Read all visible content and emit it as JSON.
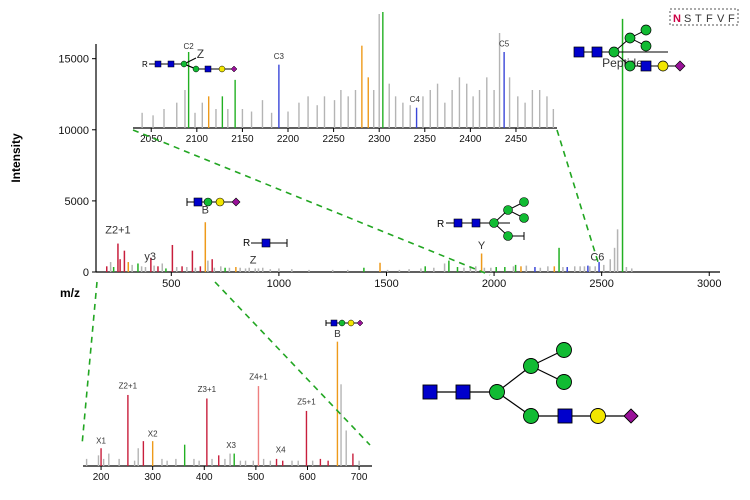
{
  "colors": {
    "axis": "#000000",
    "gray": "#b4b4b4",
    "red": "#c81e3c",
    "orange": "#ee9a1a",
    "green": "#22b022",
    "blue": "#3a46d8",
    "pink": "#ee8080",
    "dashed_guide": "#22a622",
    "glycan_blue": "#0000cc",
    "glycan_green": "#11bb33",
    "glycan_yellow": "#f2e600",
    "glycan_purple": "#991199",
    "sequon_highlight": "#cc0044"
  },
  "sequon": {
    "letters": [
      "N",
      "S",
      "T",
      "F",
      "V",
      "F"
    ]
  },
  "chart_data": [
    {
      "id": "main",
      "type": "bar",
      "title": "",
      "xlabel": "m/z",
      "ylabel": "Intensity",
      "xlim": [
        150,
        3050
      ],
      "ylim": [
        0,
        18000
      ],
      "xticks": [
        500,
        1000,
        1500,
        2000,
        2500,
        3000
      ],
      "yticks": [
        0,
        5000,
        10000,
        15000
      ],
      "peaks": [
        {
          "x": 200,
          "y": 400,
          "color": "red"
        },
        {
          "x": 218,
          "y": 700,
          "color": "gray"
        },
        {
          "x": 232,
          "y": 350,
          "color": "green"
        },
        {
          "x": 252,
          "y": 2000,
          "color": "red"
        },
        {
          "x": 262,
          "y": 900,
          "color": "red"
        },
        {
          "x": 282,
          "y": 1500,
          "color": "red"
        },
        {
          "x": 300,
          "y": 700,
          "color": "orange"
        },
        {
          "x": 318,
          "y": 500,
          "color": "gray"
        },
        {
          "x": 345,
          "y": 600,
          "color": "green"
        },
        {
          "x": 362,
          "y": 400,
          "color": "gray"
        },
        {
          "x": 380,
          "y": 350,
          "color": "gray"
        },
        {
          "x": 405,
          "y": 1000,
          "color": "red"
        },
        {
          "x": 420,
          "y": 450,
          "color": "gray"
        },
        {
          "x": 438,
          "y": 400,
          "color": "red"
        },
        {
          "x": 458,
          "y": 600,
          "color": "gray"
        },
        {
          "x": 475,
          "y": 250,
          "color": "green"
        },
        {
          "x": 505,
          "y": 1900,
          "color": "red"
        },
        {
          "x": 525,
          "y": 350,
          "color": "gray"
        },
        {
          "x": 550,
          "y": 400,
          "color": "red"
        },
        {
          "x": 572,
          "y": 350,
          "color": "gray"
        },
        {
          "x": 598,
          "y": 1500,
          "color": "red"
        },
        {
          "x": 612,
          "y": 300,
          "color": "gray"
        },
        {
          "x": 635,
          "y": 400,
          "color": "red"
        },
        {
          "x": 658,
          "y": 3500,
          "color": "orange"
        },
        {
          "x": 670,
          "y": 800,
          "color": "gray"
        },
        {
          "x": 690,
          "y": 900,
          "color": "red"
        },
        {
          "x": 700,
          "y": 300,
          "color": "gray"
        },
        {
          "x": 730,
          "y": 400,
          "color": "gray"
        },
        {
          "x": 750,
          "y": 300,
          "color": "green"
        },
        {
          "x": 770,
          "y": 300,
          "color": "gray"
        },
        {
          "x": 800,
          "y": 350,
          "color": "orange"
        },
        {
          "x": 820,
          "y": 300,
          "color": "gray"
        },
        {
          "x": 845,
          "y": 250,
          "color": "gray"
        },
        {
          "x": 862,
          "y": 300,
          "color": "gray"
        },
        {
          "x": 890,
          "y": 250,
          "color": "gray"
        },
        {
          "x": 905,
          "y": 250,
          "color": "gray"
        },
        {
          "x": 925,
          "y": 300,
          "color": "gray"
        },
        {
          "x": 960,
          "y": 200,
          "color": "gray"
        },
        {
          "x": 1000,
          "y": 250,
          "color": "gray"
        },
        {
          "x": 1060,
          "y": 200,
          "color": "gray"
        },
        {
          "x": 1140,
          "y": 150,
          "color": "gray"
        },
        {
          "x": 1250,
          "y": 150,
          "color": "gray"
        },
        {
          "x": 1320,
          "y": 150,
          "color": "gray"
        },
        {
          "x": 1395,
          "y": 300,
          "color": "green"
        },
        {
          "x": 1470,
          "y": 650,
          "color": "orange"
        },
        {
          "x": 1505,
          "y": 150,
          "color": "gray"
        },
        {
          "x": 1560,
          "y": 150,
          "color": "gray"
        },
        {
          "x": 1605,
          "y": 200,
          "color": "gray"
        },
        {
          "x": 1660,
          "y": 250,
          "color": "gray"
        },
        {
          "x": 1680,
          "y": 400,
          "color": "green"
        },
        {
          "x": 1720,
          "y": 300,
          "color": "gray"
        },
        {
          "x": 1770,
          "y": 600,
          "color": "gray"
        },
        {
          "x": 1790,
          "y": 800,
          "color": "green"
        },
        {
          "x": 1830,
          "y": 350,
          "color": "green"
        },
        {
          "x": 1860,
          "y": 300,
          "color": "gray"
        },
        {
          "x": 1890,
          "y": 350,
          "color": "gray"
        },
        {
          "x": 1915,
          "y": 400,
          "color": "gray"
        },
        {
          "x": 1942,
          "y": 1300,
          "color": "orange"
        },
        {
          "x": 1955,
          "y": 300,
          "color": "gray"
        },
        {
          "x": 1985,
          "y": 300,
          "color": "gray"
        },
        {
          "x": 2010,
          "y": 350,
          "color": "green"
        },
        {
          "x": 2050,
          "y": 350,
          "color": "green"
        },
        {
          "x": 2090,
          "y": 400,
          "color": "gray"
        },
        {
          "x": 2100,
          "y": 500,
          "color": "green"
        },
        {
          "x": 2125,
          "y": 400,
          "color": "orange"
        },
        {
          "x": 2150,
          "y": 450,
          "color": "gray"
        },
        {
          "x": 2190,
          "y": 350,
          "color": "blue"
        },
        {
          "x": 2215,
          "y": 300,
          "color": "gray"
        },
        {
          "x": 2250,
          "y": 400,
          "color": "gray"
        },
        {
          "x": 2280,
          "y": 400,
          "color": "orange"
        },
        {
          "x": 2302,
          "y": 1700,
          "color": "green"
        },
        {
          "x": 2320,
          "y": 350,
          "color": "gray"
        },
        {
          "x": 2340,
          "y": 350,
          "color": "blue"
        },
        {
          "x": 2375,
          "y": 400,
          "color": "gray"
        },
        {
          "x": 2400,
          "y": 400,
          "color": "gray"
        },
        {
          "x": 2420,
          "y": 400,
          "color": "gray"
        },
        {
          "x": 2436,
          "y": 450,
          "color": "blue"
        },
        {
          "x": 2445,
          "y": 400,
          "color": "gray"
        },
        {
          "x": 2470,
          "y": 400,
          "color": "gray"
        },
        {
          "x": 2488,
          "y": 700,
          "color": "blue"
        },
        {
          "x": 2510,
          "y": 500,
          "color": "gray"
        },
        {
          "x": 2540,
          "y": 900,
          "color": "gray"
        },
        {
          "x": 2560,
          "y": 1700,
          "color": "gray"
        },
        {
          "x": 2574,
          "y": 3000,
          "color": "gray"
        },
        {
          "x": 2597,
          "y": 17800,
          "color": "green"
        },
        {
          "x": 2615,
          "y": 350,
          "color": "gray"
        },
        {
          "x": 2640,
          "y": 250,
          "color": "gray"
        }
      ],
      "annotations": [
        {
          "text": "Z2+1",
          "x": 252,
          "y": 2500
        },
        {
          "text": "y3",
          "x": 402,
          "y": 650
        },
        {
          "text": "B",
          "x": 658,
          "y": 3900
        },
        {
          "text": "Z",
          "x": 880,
          "y": 400
        },
        {
          "text": "Y",
          "x": 1942,
          "y": 1400
        },
        {
          "text": "C6",
          "x": 2480,
          "y": 600
        },
        {
          "text": "Peptide",
          "x": 2597,
          "y": 14200
        }
      ]
    },
    {
      "id": "zoom-high",
      "type": "bar",
      "xlim": [
        2030,
        2495
      ],
      "ylim": [
        0,
        18000
      ],
      "xticks": [
        2050,
        2100,
        2150,
        2200,
        2250,
        2300,
        2350,
        2400,
        2450
      ],
      "peaks": [
        {
          "x": 2040,
          "y": 1200,
          "color": "gray"
        },
        {
          "x": 2052,
          "y": 1000,
          "color": "gray"
        },
        {
          "x": 2064,
          "y": 1500,
          "color": "gray"
        },
        {
          "x": 2078,
          "y": 2000,
          "color": "gray"
        },
        {
          "x": 2087,
          "y": 3000,
          "color": "gray"
        },
        {
          "x": 2091,
          "y": 6000,
          "color": "green"
        },
        {
          "x": 2098,
          "y": 1200,
          "color": "gray"
        },
        {
          "x": 2106,
          "y": 2000,
          "color": "gray"
        },
        {
          "x": 2113,
          "y": 2500,
          "color": "orange"
        },
        {
          "x": 2121,
          "y": 1500,
          "color": "gray"
        },
        {
          "x": 2128,
          "y": 2500,
          "color": "green"
        },
        {
          "x": 2134,
          "y": 1500,
          "color": "gray"
        },
        {
          "x": 2142,
          "y": 3800,
          "color": "green"
        },
        {
          "x": 2150,
          "y": 1500,
          "color": "gray"
        },
        {
          "x": 2160,
          "y": 1300,
          "color": "gray"
        },
        {
          "x": 2172,
          "y": 2200,
          "color": "gray"
        },
        {
          "x": 2182,
          "y": 1200,
          "color": "gray"
        },
        {
          "x": 2190,
          "y": 5000,
          "color": "blue"
        },
        {
          "x": 2200,
          "y": 1300,
          "color": "gray"
        },
        {
          "x": 2212,
          "y": 2000,
          "color": "gray"
        },
        {
          "x": 2222,
          "y": 2500,
          "color": "gray"
        },
        {
          "x": 2232,
          "y": 1800,
          "color": "gray"
        },
        {
          "x": 2240,
          "y": 2500,
          "color": "gray"
        },
        {
          "x": 2251,
          "y": 2200,
          "color": "gray"
        },
        {
          "x": 2258,
          "y": 3000,
          "color": "gray"
        },
        {
          "x": 2266,
          "y": 2500,
          "color": "gray"
        },
        {
          "x": 2274,
          "y": 3000,
          "color": "gray"
        },
        {
          "x": 2281,
          "y": 6500,
          "color": "orange"
        },
        {
          "x": 2288,
          "y": 4000,
          "color": "orange"
        },
        {
          "x": 2294,
          "y": 3000,
          "color": "gray"
        },
        {
          "x": 2300,
          "y": 9000,
          "color": "gray"
        },
        {
          "x": 2304,
          "y": 30000,
          "color": "green"
        },
        {
          "x": 2311,
          "y": 3500,
          "color": "gray"
        },
        {
          "x": 2318,
          "y": 2500,
          "color": "gray"
        },
        {
          "x": 2326,
          "y": 2000,
          "color": "gray"
        },
        {
          "x": 2334,
          "y": 1800,
          "color": "gray"
        },
        {
          "x": 2341,
          "y": 1600,
          "color": "blue"
        },
        {
          "x": 2348,
          "y": 2500,
          "color": "gray"
        },
        {
          "x": 2356,
          "y": 3000,
          "color": "gray"
        },
        {
          "x": 2364,
          "y": 3500,
          "color": "gray"
        },
        {
          "x": 2372,
          "y": 2000,
          "color": "gray"
        },
        {
          "x": 2380,
          "y": 3000,
          "color": "gray"
        },
        {
          "x": 2388,
          "y": 4000,
          "color": "gray"
        },
        {
          "x": 2396,
          "y": 3500,
          "color": "gray"
        },
        {
          "x": 2403,
          "y": 2500,
          "color": "gray"
        },
        {
          "x": 2410,
          "y": 3000,
          "color": "gray"
        },
        {
          "x": 2418,
          "y": 4000,
          "color": "gray"
        },
        {
          "x": 2426,
          "y": 3000,
          "color": "gray"
        },
        {
          "x": 2432,
          "y": 7500,
          "color": "gray"
        },
        {
          "x": 2437,
          "y": 6000,
          "color": "blue"
        },
        {
          "x": 2443,
          "y": 4000,
          "color": "gray"
        },
        {
          "x": 2452,
          "y": 2500,
          "color": "gray"
        },
        {
          "x": 2460,
          "y": 2000,
          "color": "gray"
        },
        {
          "x": 2468,
          "y": 3000,
          "color": "gray"
        },
        {
          "x": 2476,
          "y": 3000,
          "color": "gray"
        },
        {
          "x": 2484,
          "y": 2500,
          "color": "gray"
        },
        {
          "x": 2491,
          "y": 1500,
          "color": "gray"
        }
      ],
      "annotations": [
        {
          "text": "C2",
          "x": 2091,
          "y": 6000
        },
        {
          "text": "Z",
          "x": 2104,
          "y": 5300
        },
        {
          "text": "C3",
          "x": 2190,
          "y": 5200
        },
        {
          "text": "C4",
          "x": 2339,
          "y": 1800
        },
        {
          "text": "C5",
          "x": 2437,
          "y": 6200
        }
      ]
    },
    {
      "id": "zoom-low",
      "type": "bar",
      "xlim": [
        165,
        725
      ],
      "ylim": [
        0,
        3800
      ],
      "xticks": [
        200,
        300,
        400,
        500,
        600,
        700
      ],
      "peaks": [
        {
          "x": 172,
          "y": 200,
          "color": "gray"
        },
        {
          "x": 195,
          "y": 300,
          "color": "gray"
        },
        {
          "x": 200,
          "y": 500,
          "color": "red"
        },
        {
          "x": 205,
          "y": 200,
          "color": "gray"
        },
        {
          "x": 215,
          "y": 350,
          "color": "gray"
        },
        {
          "x": 235,
          "y": 200,
          "color": "gray"
        },
        {
          "x": 252,
          "y": 2000,
          "color": "red"
        },
        {
          "x": 265,
          "y": 150,
          "color": "gray"
        },
        {
          "x": 272,
          "y": 500,
          "color": "gray"
        },
        {
          "x": 282,
          "y": 700,
          "color": "red"
        },
        {
          "x": 300,
          "y": 700,
          "color": "orange"
        },
        {
          "x": 318,
          "y": 200,
          "color": "gray"
        },
        {
          "x": 328,
          "y": 150,
          "color": "gray"
        },
        {
          "x": 345,
          "y": 200,
          "color": "gray"
        },
        {
          "x": 362,
          "y": 600,
          "color": "green"
        },
        {
          "x": 380,
          "y": 200,
          "color": "gray"
        },
        {
          "x": 390,
          "y": 150,
          "color": "gray"
        },
        {
          "x": 405,
          "y": 1900,
          "color": "red"
        },
        {
          "x": 415,
          "y": 200,
          "color": "gray"
        },
        {
          "x": 428,
          "y": 300,
          "color": "red"
        },
        {
          "x": 440,
          "y": 200,
          "color": "gray"
        },
        {
          "x": 450,
          "y": 350,
          "color": "gray"
        },
        {
          "x": 458,
          "y": 350,
          "color": "green"
        },
        {
          "x": 470,
          "y": 150,
          "color": "gray"
        },
        {
          "x": 480,
          "y": 150,
          "color": "gray"
        },
        {
          "x": 495,
          "y": 150,
          "color": "gray"
        },
        {
          "x": 505,
          "y": 2250,
          "color": "pink"
        },
        {
          "x": 515,
          "y": 200,
          "color": "gray"
        },
        {
          "x": 528,
          "y": 150,
          "color": "gray"
        },
        {
          "x": 540,
          "y": 200,
          "color": "red"
        },
        {
          "x": 552,
          "y": 150,
          "color": "red"
        },
        {
          "x": 570,
          "y": 150,
          "color": "gray"
        },
        {
          "x": 582,
          "y": 150,
          "color": "gray"
        },
        {
          "x": 598,
          "y": 1550,
          "color": "red"
        },
        {
          "x": 610,
          "y": 150,
          "color": "gray"
        },
        {
          "x": 625,
          "y": 200,
          "color": "red"
        },
        {
          "x": 640,
          "y": 150,
          "color": "red"
        },
        {
          "x": 658,
          "y": 3500,
          "color": "orange"
        },
        {
          "x": 665,
          "y": 2300,
          "color": "gray"
        },
        {
          "x": 675,
          "y": 1000,
          "color": "gray"
        },
        {
          "x": 688,
          "y": 350,
          "color": "red"
        },
        {
          "x": 700,
          "y": 150,
          "color": "gray"
        }
      ],
      "annotations": [
        {
          "text": "X1",
          "x": 200,
          "y": 550
        },
        {
          "text": "Z2+1",
          "x": 252,
          "y": 2100
        },
        {
          "text": "X2",
          "x": 300,
          "y": 750
        },
        {
          "text": "Z3+1",
          "x": 405,
          "y": 2000
        },
        {
          "text": "X3",
          "x": 452,
          "y": 420
        },
        {
          "text": "Z4+1",
          "x": 505,
          "y": 2350
        },
        {
          "text": "X4",
          "x": 548,
          "y": 300
        },
        {
          "text": "Z5+1",
          "x": 598,
          "y": 1650
        },
        {
          "text": "B",
          "x": 658,
          "y": 3550
        }
      ]
    }
  ]
}
